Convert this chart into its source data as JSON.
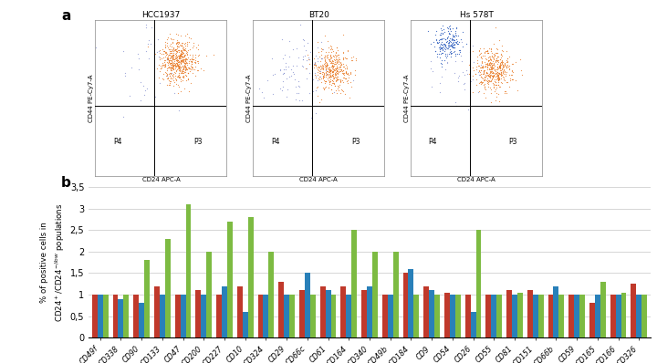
{
  "categories": [
    "CD49f",
    "CD338",
    "CD90",
    "CD133",
    "CD47",
    "CD200",
    "CD227",
    "CD10",
    "CD324",
    "CD29",
    "CD66c",
    "CD61",
    "CD164",
    "CD340",
    "CD49b",
    "CD184",
    "CD9",
    "CD54",
    "CD26",
    "CD55",
    "CD81",
    "CD151",
    "CD66b",
    "CD59",
    "CD165",
    "CD166",
    "CD326"
  ],
  "BT20": [
    1.0,
    1.0,
    1.0,
    1.2,
    1.0,
    1.1,
    1.0,
    1.2,
    1.0,
    1.3,
    1.1,
    1.2,
    1.2,
    1.1,
    1.0,
    1.5,
    1.2,
    1.05,
    1.0,
    1.0,
    1.1,
    1.1,
    1.0,
    1.0,
    0.8,
    1.0,
    1.25
  ],
  "Hs578T": [
    1.0,
    0.9,
    0.8,
    1.0,
    1.0,
    1.0,
    1.2,
    0.6,
    1.0,
    1.0,
    1.5,
    1.1,
    1.0,
    1.2,
    1.0,
    1.6,
    1.1,
    1.0,
    0.6,
    1.0,
    1.0,
    1.0,
    1.2,
    1.0,
    1.0,
    1.0,
    1.0
  ],
  "HCC1937": [
    1.0,
    1.0,
    1.8,
    2.3,
    3.1,
    2.0,
    2.7,
    2.8,
    2.0,
    1.0,
    1.0,
    1.0,
    2.5,
    2.0,
    2.0,
    1.0,
    1.0,
    1.0,
    2.5,
    1.0,
    1.05,
    1.0,
    1.0,
    1.0,
    1.3,
    1.05,
    1.0
  ],
  "colors": {
    "BT20": "#c0392b",
    "Hs578T": "#2980b9",
    "HCC1937": "#7dbb42"
  },
  "ylabel": "% of positive cells in\nCD24+/CD24-low populations",
  "ylim": [
    0,
    3.5
  ],
  "yticks": [
    0,
    0.5,
    1.0,
    1.5,
    2.0,
    2.5,
    3.0,
    3.5
  ],
  "ytick_labels": [
    "0",
    "0,5",
    "1",
    "1,5",
    "2",
    "2,5",
    "3",
    "3,5"
  ],
  "scatter_titles": [
    "HCC1937",
    "BT20",
    "Hs 578T"
  ],
  "background_color": "#ffffff"
}
